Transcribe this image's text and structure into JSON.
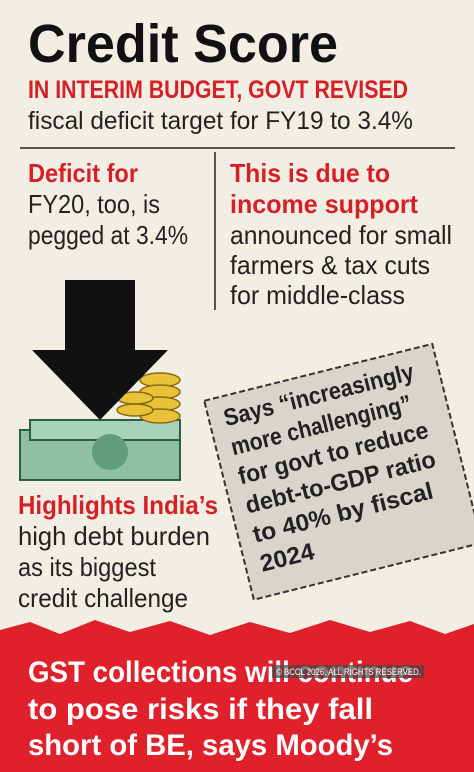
{
  "header": {
    "title": "Credit Score",
    "kicker": "IN INTERIM BUDGET, GOVT REVISED",
    "subtitle": "fiscal deficit target for FY19 to 3.4%"
  },
  "left_block": {
    "lines": [
      "Deficit for",
      "FY20, too, is",
      "pegged at 3.4%"
    ]
  },
  "right_block": {
    "lines": [
      "This is due to",
      "income support",
      "announced for small",
      "farmers & tax cuts",
      "for middle-class"
    ]
  },
  "quote_box": {
    "lines": [
      "Says “increasingly",
      "more challenging”",
      "for govt to reduce",
      "debt-to-GDP ratio",
      "to 40% by fiscal",
      "2024"
    ]
  },
  "highlight": {
    "lines": [
      "Highlights India’s",
      "high debt burden",
      "as its biggest",
      "credit challenge"
    ]
  },
  "footer": {
    "lines": [
      "GST collections will continue",
      "to pose risks if they fall",
      "short of BE, says Moody’s"
    ],
    "watermark": "© BCCL 2026. ALL RIGHTS RESERVED."
  }
}
